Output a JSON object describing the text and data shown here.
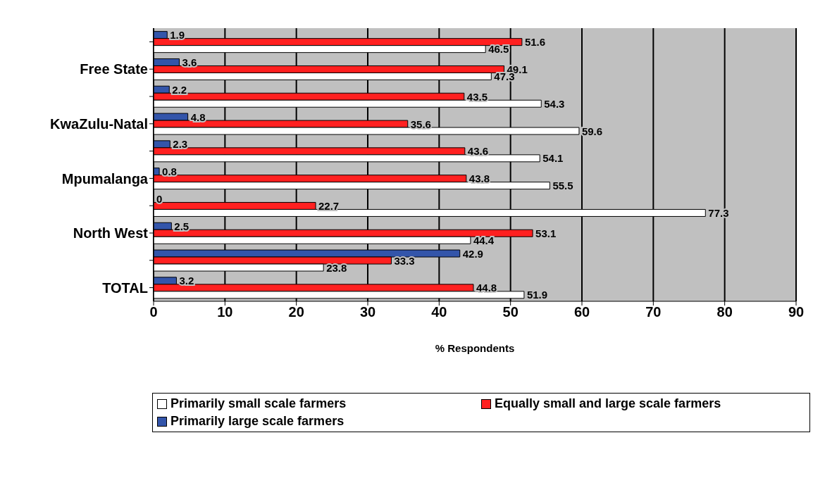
{
  "chart_data": {
    "type": "bar",
    "orientation": "horizontal",
    "xlabel": "% Respondents",
    "categories": [
      null,
      "Free State",
      null,
      "KwaZulu-Natal",
      null,
      "Mpumalanga",
      null,
      "North West",
      null,
      "TOTAL"
    ],
    "series": [
      {
        "name": "Primarily small scale farmers",
        "color": "#ffffff",
        "values": [
          46.5,
          47.3,
          54.3,
          59.6,
          54.1,
          55.5,
          77.3,
          44.4,
          23.8,
          51.9
        ]
      },
      {
        "name": "Equally small and large scale farmers",
        "color": "#ff2020",
        "values": [
          51.6,
          49.1,
          43.5,
          35.6,
          43.6,
          43.8,
          22.7,
          53.1,
          33.3,
          44.8
        ]
      },
      {
        "name": "Primarily large scale farmers",
        "color": "#3355aa",
        "values": [
          1.9,
          3.6,
          2.2,
          4.8,
          2.3,
          0.8,
          0,
          2.5,
          42.9,
          3.2
        ]
      }
    ],
    "xlim": [
      0,
      90
    ],
    "xticks": [
      0,
      10,
      20,
      30,
      40,
      50,
      60,
      70,
      80,
      90
    ],
    "grid": "x",
    "legend": "bottom",
    "data_labels": true
  }
}
